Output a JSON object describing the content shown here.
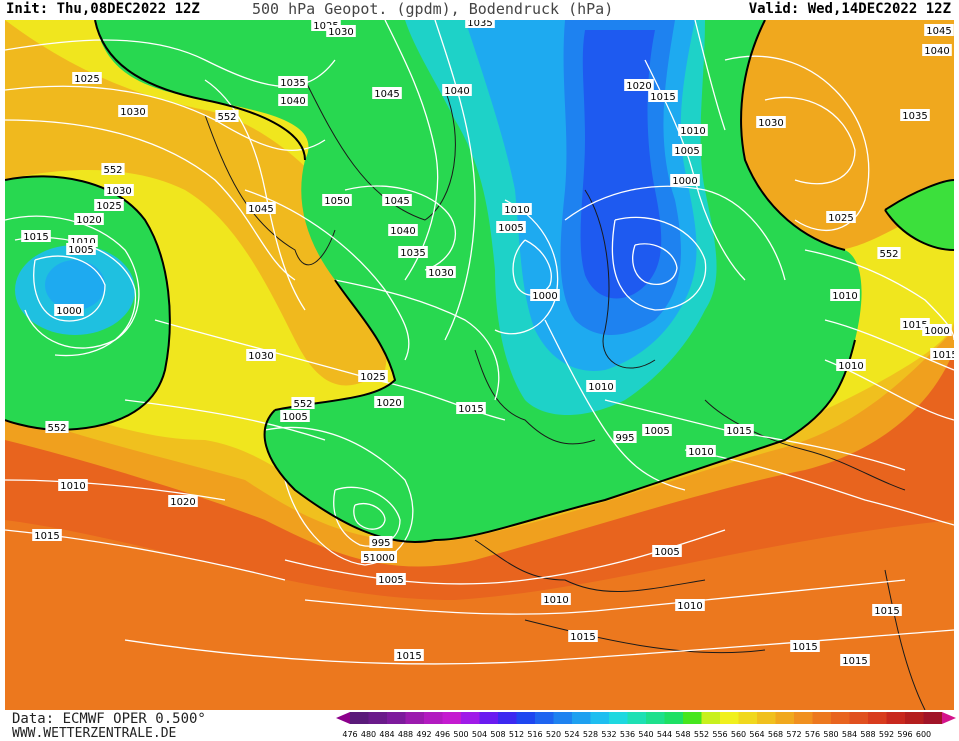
{
  "header": {
    "init": "Init: Thu,08DEC2022 12Z",
    "title": "500 hPa Geopot. (gpdm), Bodendruck (hPa)",
    "valid": "Valid: Wed,14DEC2022 12Z"
  },
  "footer": {
    "data_source": "Data: ECMWF OPER 0.500°",
    "website": "WWW.WETTERZENTRALE.DE"
  },
  "legend": {
    "values": [
      "476",
      "480",
      "484",
      "488",
      "492",
      "496",
      "500",
      "504",
      "508",
      "512",
      "516",
      "520",
      "524",
      "528",
      "532",
      "536",
      "540",
      "544",
      "548",
      "552",
      "556",
      "560",
      "564",
      "568",
      "572",
      "576",
      "580",
      "584",
      "588",
      "592",
      "596",
      "600"
    ],
    "colors": [
      "#5a1a7a",
      "#6a1a8a",
      "#7d1a9c",
      "#9b1aae",
      "#b21ac0",
      "#c41ad0",
      "#a01ae8",
      "#6a1af0",
      "#3c28f0",
      "#1e46f0",
      "#1e64f0",
      "#1e82f0",
      "#1ea0f0",
      "#1ebef0",
      "#1ed8e0",
      "#1ee0b4",
      "#1ee08c",
      "#1ee064",
      "#46e61e",
      "#c8f01e",
      "#f0f01e",
      "#f0d81e",
      "#f0c01e",
      "#f0a81e",
      "#f09020",
      "#ec7820",
      "#e86420",
      "#e05020",
      "#d83c1e",
      "#c8281e",
      "#b41e1e",
      "#a01428"
    ],
    "arrow_left_color": "#8b008b",
    "arrow_right_color": "#d4148c"
  },
  "map_labels": [
    {
      "id": "l1",
      "text": "1025"
    },
    {
      "id": "l2",
      "text": "1030"
    },
    {
      "id": "l3",
      "text": "1035"
    },
    {
      "id": "l4",
      "text": "1025"
    },
    {
      "id": "l5",
      "text": "1035"
    },
    {
      "id": "l6",
      "text": "1040"
    },
    {
      "id": "l7",
      "text": "1030"
    },
    {
      "id": "l8",
      "text": "552"
    },
    {
      "id": "l9",
      "text": "1045"
    },
    {
      "id": "l10",
      "text": "1040"
    },
    {
      "id": "l11",
      "text": "552"
    },
    {
      "id": "l12",
      "text": "1030"
    },
    {
      "id": "l13",
      "text": "1025"
    },
    {
      "id": "l14",
      "text": "1020"
    },
    {
      "id": "l15",
      "text": "1015"
    },
    {
      "id": "l16",
      "text": "1010"
    },
    {
      "id": "l17",
      "text": "1005"
    },
    {
      "id": "l18",
      "text": "1000"
    },
    {
      "id": "l19",
      "text": "1045"
    },
    {
      "id": "l20",
      "text": "1050"
    },
    {
      "id": "l21",
      "text": "1045"
    },
    {
      "id": "l22",
      "text": "1040"
    },
    {
      "id": "l23",
      "text": "1035"
    },
    {
      "id": "l24",
      "text": "1030"
    },
    {
      "id": "l25",
      "text": "1020"
    },
    {
      "id": "l26",
      "text": "1015"
    },
    {
      "id": "l27",
      "text": "1010"
    },
    {
      "id": "l28",
      "text": "1005"
    },
    {
      "id": "l29",
      "text": "1000"
    },
    {
      "id": "l30",
      "text": "1010"
    },
    {
      "id": "l31",
      "text": "1005"
    },
    {
      "id": "l32",
      "text": "1000"
    },
    {
      "id": "l33",
      "text": "1045"
    },
    {
      "id": "l34",
      "text": "1040"
    },
    {
      "id": "l35",
      "text": "1030"
    },
    {
      "id": "l36",
      "text": "1035"
    },
    {
      "id": "l37",
      "text": "1025"
    },
    {
      "id": "l38",
      "text": "552"
    },
    {
      "id": "l39",
      "text": "1010"
    },
    {
      "id": "l40",
      "text": "1015"
    },
    {
      "id": "l41",
      "text": "1015"
    },
    {
      "id": "l42",
      "text": "1030"
    },
    {
      "id": "l43",
      "text": "1025"
    },
    {
      "id": "l44",
      "text": "1020"
    },
    {
      "id": "l45",
      "text": "1015"
    },
    {
      "id": "l46",
      "text": "1010"
    },
    {
      "id": "l47",
      "text": "1005"
    },
    {
      "id": "l48",
      "text": "552"
    },
    {
      "id": "l49",
      "text": "1000"
    },
    {
      "id": "l50",
      "text": "995"
    },
    {
      "id": "l51",
      "text": "1005"
    },
    {
      "id": "l52",
      "text": "1010"
    },
    {
      "id": "l53",
      "text": "1015"
    },
    {
      "id": "l54",
      "text": "1010"
    },
    {
      "id": "l55",
      "text": "552"
    },
    {
      "id": "l56",
      "text": "1010"
    },
    {
      "id": "l57",
      "text": "1020"
    },
    {
      "id": "l58",
      "text": "1015"
    },
    {
      "id": "l59",
      "text": "995"
    },
    {
      "id": "l60",
      "text": "51000"
    },
    {
      "id": "l61",
      "text": "1005"
    },
    {
      "id": "l62",
      "text": "1005"
    },
    {
      "id": "l63",
      "text": "1010"
    },
    {
      "id": "l64",
      "text": "1010"
    },
    {
      "id": "l65",
      "text": "1015"
    },
    {
      "id": "l66",
      "text": "1015"
    },
    {
      "id": "l67",
      "text": "1015"
    },
    {
      "id": "l68",
      "text": "1015"
    },
    {
      "id": "l69",
      "text": "1015"
    }
  ]
}
